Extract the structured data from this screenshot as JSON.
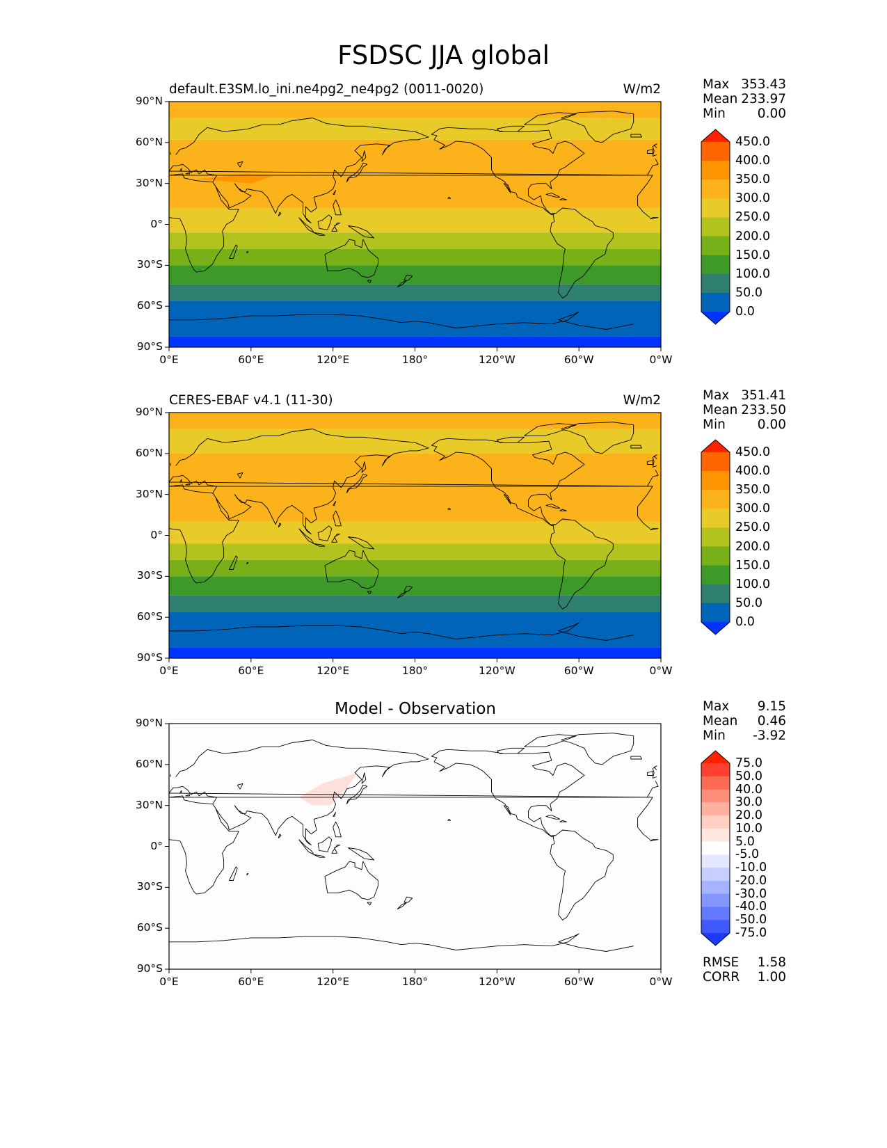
{
  "title": "FSDSC JJA global",
  "panels": [
    {
      "id": "model",
      "title": "default.E3SM.lo_ini.ne4pg2_ne4pg2 (0011-0020)",
      "units": "W/m2",
      "stats": {
        "max_label": "Max",
        "max": "353.43",
        "mean_label": "Mean",
        "mean": "233.97",
        "min_label": "Min",
        "min": "0.00"
      },
      "colorbar": {
        "labels": [
          "450.0",
          "400.0",
          "350.0",
          "300.0",
          "250.0",
          "200.0",
          "150.0",
          "100.0",
          "50.0",
          "0.0"
        ],
        "colors": [
          "#ff2200",
          "#ff6600",
          "#ff9600",
          "#fcb31b",
          "#e8cb28",
          "#b2c21e",
          "#78b017",
          "#3d9a29",
          "#2f8070",
          "#0065b8",
          "#0035ff"
        ]
      },
      "field": {
        "bands": [
          {
            "lat": [
              90,
              86
            ],
            "color": "#fcb31b"
          },
          {
            "lat": [
              86,
              78
            ],
            "color": "#fcb31b"
          },
          {
            "lat": [
              78,
              62
            ],
            "color": "#e8cb28"
          },
          {
            "lat": [
              62,
              12
            ],
            "color": "#fcb31b"
          },
          {
            "lat": [
              12,
              -6
            ],
            "color": "#e8cb28"
          },
          {
            "lat": [
              -6,
              -18
            ],
            "color": "#b2c21e"
          },
          {
            "lat": [
              -18,
              -30
            ],
            "color": "#78b017"
          },
          {
            "lat": [
              -30,
              -44
            ],
            "color": "#3d9a29"
          },
          {
            "lat": [
              -44,
              -56
            ],
            "color": "#2f8070"
          },
          {
            "lat": [
              -56,
              -82
            ],
            "color": "#0065b8"
          },
          {
            "lat": [
              -82,
              -90
            ],
            "color": "#0035ff"
          }
        ]
      }
    },
    {
      "id": "obs",
      "title": "CERES-EBAF v4.1 (11-30)",
      "units": "W/m2",
      "stats": {
        "max_label": "Max",
        "max": "351.41",
        "mean_label": "Mean",
        "mean": "233.50",
        "min_label": "Min",
        "min": "0.00"
      },
      "colorbar": {
        "labels": [
          "450.0",
          "400.0",
          "350.0",
          "300.0",
          "250.0",
          "200.0",
          "150.0",
          "100.0",
          "50.0",
          "0.0"
        ],
        "colors": [
          "#ff2200",
          "#ff6600",
          "#ff9600",
          "#fcb31b",
          "#e8cb28",
          "#b2c21e",
          "#78b017",
          "#3d9a29",
          "#2f8070",
          "#0065b8",
          "#0035ff"
        ]
      },
      "field": {
        "bands": [
          {
            "lat": [
              90,
              78
            ],
            "color": "#fcb31b"
          },
          {
            "lat": [
              78,
              60
            ],
            "color": "#e8cb28"
          },
          {
            "lat": [
              60,
              10
            ],
            "color": "#fcb31b"
          },
          {
            "lat": [
              10,
              -6
            ],
            "color": "#e8cb28"
          },
          {
            "lat": [
              -6,
              -18
            ],
            "color": "#b2c21e"
          },
          {
            "lat": [
              -18,
              -30
            ],
            "color": "#78b017"
          },
          {
            "lat": [
              -30,
              -44
            ],
            "color": "#3d9a29"
          },
          {
            "lat": [
              -44,
              -56
            ],
            "color": "#2f8070"
          },
          {
            "lat": [
              -56,
              -82
            ],
            "color": "#0065b8"
          },
          {
            "lat": [
              -82,
              -90
            ],
            "color": "#0035ff"
          }
        ]
      }
    },
    {
      "id": "diff",
      "title": "Model - Observation",
      "units": "",
      "stats": {
        "max_label": "Max",
        "max": "9.15",
        "mean_label": "Mean",
        "mean": "0.46",
        "min_label": "Min",
        "min": "-3.92"
      },
      "colorbar": {
        "labels": [
          "75.0",
          "50.0",
          "40.0",
          "30.0",
          "20.0",
          "10.0",
          "5.0",
          "-5.0",
          "-10.0",
          "-20.0",
          "-30.0",
          "-40.0",
          "-50.0",
          "-75.0"
        ],
        "colors": [
          "#ff2200",
          "#ff4030",
          "#ff6a55",
          "#ff8e7a",
          "#ffb0a0",
          "#ffcfc4",
          "#ffe8e2",
          "#ffffff",
          "#e4e8ff",
          "#c6cfff",
          "#a6b4ff",
          "#8597ff",
          "#6379ff",
          "#3f59ff",
          "#1a3aff"
        ]
      },
      "field": {
        "bands": [
          {
            "lat": [
              90,
              -90
            ],
            "color": "#fdfdfd"
          }
        ]
      },
      "metrics": {
        "rmse_label": "RMSE",
        "rmse": "1.58",
        "corr_label": "CORR",
        "corr": "1.00"
      }
    }
  ],
  "axes": {
    "x_ticks": [
      "0°E",
      "60°E",
      "120°E",
      "180°",
      "120°W",
      "60°W",
      "0°W"
    ],
    "y_ticks": [
      "90°N",
      "60°N",
      "30°N",
      "0°",
      "30°S",
      "60°S",
      "90°S"
    ]
  }
}
